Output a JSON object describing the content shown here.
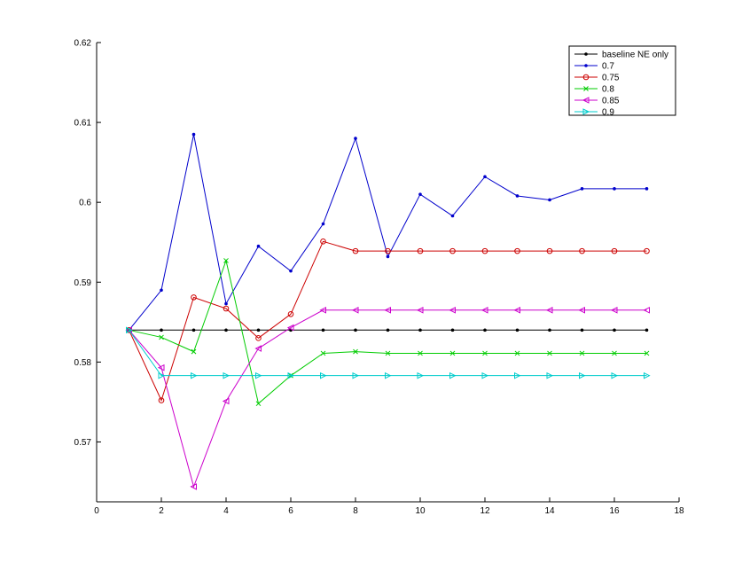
{
  "chart_data": {
    "type": "line",
    "title": "",
    "xlabel": "",
    "ylabel": "",
    "xlim": [
      0,
      18
    ],
    "ylim": [
      0.5625,
      0.62
    ],
    "grid": false,
    "legend_position": "top-right",
    "xticks": [
      0,
      2,
      4,
      6,
      8,
      10,
      12,
      14,
      16,
      18
    ],
    "xtick_labels": [
      "0",
      "2",
      "4",
      "6",
      "8",
      "10",
      "12",
      "14",
      "16",
      "18"
    ],
    "yticks": [
      0.57,
      0.58,
      0.59,
      0.6,
      0.61,
      0.62
    ],
    "ytick_labels": [
      "0.57",
      "0.58",
      "0.59",
      "0.6",
      "0.61",
      "0.62"
    ],
    "x": [
      1,
      2,
      3,
      4,
      5,
      6,
      7,
      8,
      9,
      10,
      11,
      12,
      13,
      14,
      15,
      16,
      17
    ],
    "series": [
      {
        "name": "baseline NE only",
        "color": "#000000",
        "marker": "dot",
        "values": [
          0.584,
          0.584,
          0.584,
          0.584,
          0.584,
          0.584,
          0.584,
          0.584,
          0.584,
          0.584,
          0.584,
          0.584,
          0.584,
          0.584,
          0.584,
          0.584,
          0.584
        ]
      },
      {
        "name": "0.7",
        "color": "#0000cc",
        "marker": "dot",
        "values": [
          0.584,
          0.589,
          0.6085,
          0.5873,
          0.5945,
          0.5914,
          0.5973,
          0.608,
          0.5932,
          0.601,
          0.5983,
          0.6032,
          0.6008,
          0.6003,
          0.6017,
          0.6017,
          0.6017
        ]
      },
      {
        "name": "0.75",
        "color": "#cc0000",
        "marker": "circle",
        "values": [
          0.584,
          0.5752,
          0.5881,
          0.5867,
          0.583,
          0.586,
          0.5951,
          0.5939,
          0.5939,
          0.5939,
          0.5939,
          0.5939,
          0.5939,
          0.5939,
          0.5939,
          0.5939,
          0.5939
        ]
      },
      {
        "name": "0.8",
        "color": "#00cc00",
        "marker": "x",
        "values": [
          0.584,
          0.5831,
          0.5813,
          0.5927,
          0.5748,
          0.5783,
          0.5811,
          0.5813,
          0.5811,
          0.5811,
          0.5811,
          0.5811,
          0.5811,
          0.5811,
          0.5811,
          0.5811,
          0.5811
        ]
      },
      {
        "name": "0.85",
        "color": "#cc00cc",
        "marker": "triangle-left",
        "values": [
          0.584,
          0.5793,
          0.5644,
          0.5751,
          0.5817,
          0.5843,
          0.5865,
          0.5865,
          0.5865,
          0.5865,
          0.5865,
          0.5865,
          0.5865,
          0.5865,
          0.5865,
          0.5865,
          0.5865
        ]
      },
      {
        "name": "0.9",
        "color": "#00cccc",
        "marker": "triangle-right",
        "values": [
          0.584,
          0.5783,
          0.5783,
          0.5783,
          0.5783,
          0.5783,
          0.5783,
          0.5783,
          0.5783,
          0.5783,
          0.5783,
          0.5783,
          0.5783,
          0.5783,
          0.5783,
          0.5783,
          0.5783
        ]
      }
    ]
  }
}
